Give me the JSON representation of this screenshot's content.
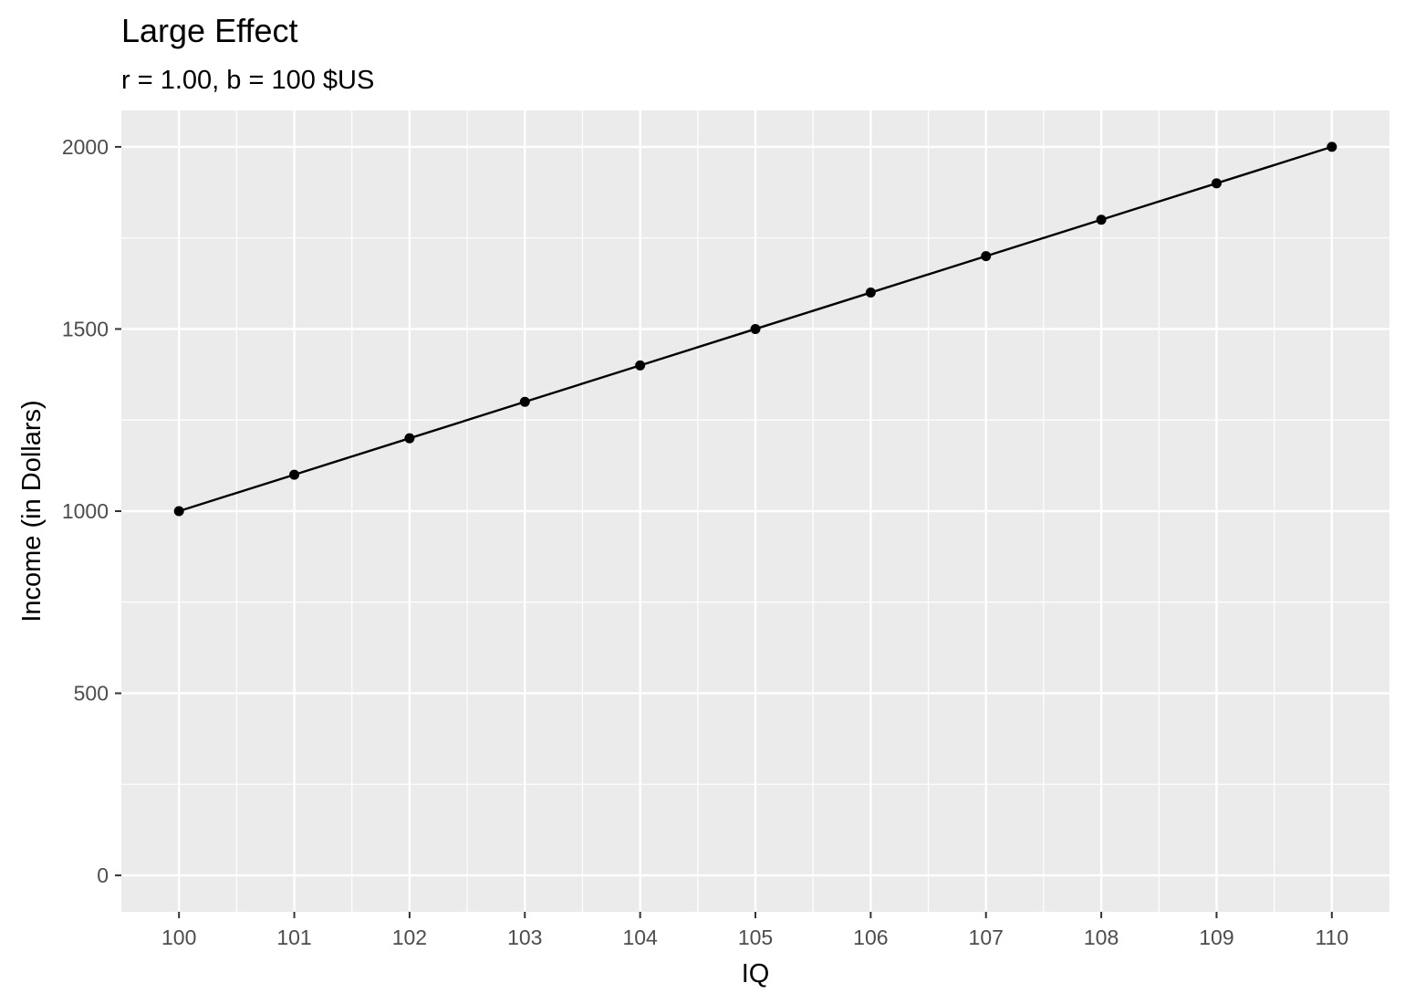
{
  "chart_data": {
    "type": "line",
    "title": "Large Effect",
    "subtitle": "r = 1.00, b = 100 $US",
    "xlabel": "IQ",
    "ylabel": "Income (in Dollars)",
    "x": [
      100,
      101,
      102,
      103,
      104,
      105,
      106,
      107,
      108,
      109,
      110
    ],
    "series": [
      {
        "values": [
          1000,
          1100,
          1200,
          1300,
          1400,
          1500,
          1600,
          1700,
          1800,
          1900,
          2000
        ]
      }
    ],
    "x_ticks": [
      "100",
      "101",
      "102",
      "103",
      "104",
      "105",
      "106",
      "107",
      "108",
      "109",
      "110"
    ],
    "y_ticks": [
      0,
      500,
      1000,
      1500,
      2000
    ],
    "y_tick_labels": [
      "0",
      "500",
      "1000",
      "1500",
      "2000"
    ],
    "xlim": [
      99.5,
      110.5
    ],
    "ylim": [
      -100,
      2100
    ],
    "grid": true,
    "panel_color": "#ebebeb",
    "grid_color": "#ffffff",
    "line_color": "#000000",
    "point_color": "#000000"
  }
}
